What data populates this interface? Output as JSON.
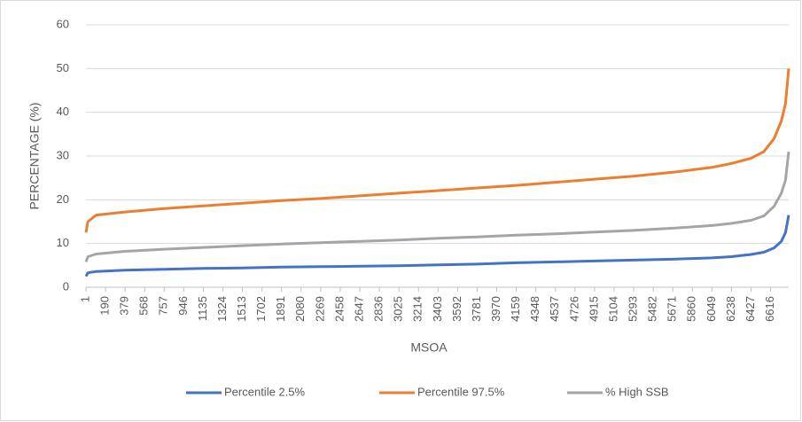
{
  "chart_data": {
    "type": "line",
    "x_label": "MSOA",
    "y_label": "PERCENTAGE (%)",
    "x": [
      1,
      20,
      100,
      379,
      757,
      1135,
      1513,
      1891,
      2269,
      2647,
      3025,
      3403,
      3781,
      4159,
      4537,
      4915,
      5293,
      5671,
      6049,
      6238,
      6427,
      6550,
      6650,
      6720,
      6760,
      6791
    ],
    "series": [
      {
        "name": "Percentile 2.5%",
        "color": "#4472c4",
        "values": [
          2.5,
          3.3,
          3.6,
          3.9,
          4.1,
          4.3,
          4.4,
          4.6,
          4.7,
          4.8,
          4.9,
          5.1,
          5.3,
          5.6,
          5.8,
          6,
          6.2,
          6.4,
          6.7,
          7,
          7.5,
          8,
          9,
          10.5,
          12.5,
          16.5
        ]
      },
      {
        "name": "Percentile 97.5%",
        "color": "#ed7d31",
        "values": [
          12.5,
          15,
          16.5,
          17.2,
          18,
          18.6,
          19.2,
          19.8,
          20.3,
          20.9,
          21.5,
          22.1,
          22.7,
          23.3,
          24,
          24.7,
          25.4,
          26.3,
          27.4,
          28.3,
          29.5,
          31,
          34,
          38,
          42,
          50
        ]
      },
      {
        "name": "% High SSB",
        "color": "#a5a5a5",
        "values": [
          5.8,
          7,
          7.6,
          8.2,
          8.7,
          9.1,
          9.5,
          9.9,
          10.2,
          10.5,
          10.8,
          11.2,
          11.5,
          11.9,
          12.2,
          12.6,
          13,
          13.5,
          14.1,
          14.6,
          15.3,
          16.3,
          18.5,
          21.5,
          24.5,
          31
        ]
      }
    ],
    "xlim": [
      1,
      6791
    ],
    "xticks": [
      1,
      190,
      379,
      568,
      757,
      946,
      1135,
      1324,
      1513,
      1702,
      1891,
      2080,
      2269,
      2458,
      2647,
      2836,
      3025,
      3214,
      3403,
      3592,
      3781,
      3970,
      4159,
      4348,
      4537,
      4726,
      4915,
      5104,
      5293,
      5482,
      5671,
      5860,
      6049,
      6238,
      6427,
      6616
    ],
    "ylim": [
      0,
      60
    ],
    "yticks": [
      0,
      10,
      20,
      30,
      40,
      50,
      60
    ],
    "grid": true
  }
}
